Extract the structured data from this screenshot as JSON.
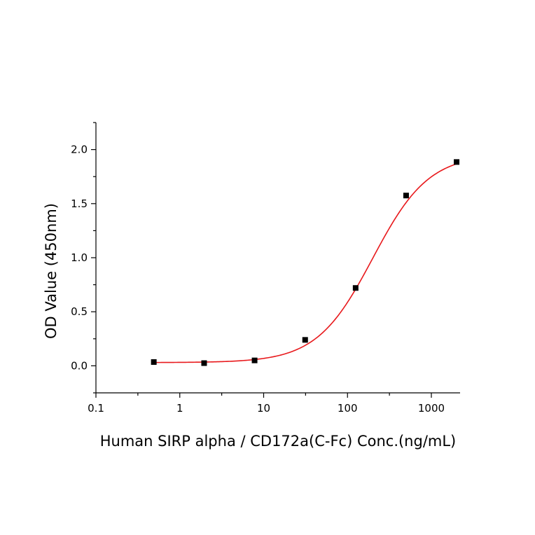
{
  "chart_data": {
    "type": "scatter",
    "xscale": "log",
    "xlim": [
      0.1,
      2200
    ],
    "ylim": [
      -0.25,
      2.25
    ],
    "xlabel": "Human SIRP alpha / CD172a(C-Fc) Conc.(ng/mL)",
    "ylabel": "OD Value (450nm)",
    "x_ticks": [
      0.1,
      1,
      10,
      100,
      1000
    ],
    "x_tick_labels": [
      "0.1",
      "1",
      "10",
      "100",
      "1000"
    ],
    "y_ticks": [
      0.0,
      0.5,
      1.0,
      1.5,
      2.0
    ],
    "y_tick_labels": [
      "0.0",
      "0.5",
      "1.0",
      "1.5",
      "2.0"
    ],
    "grid": false,
    "series": [
      {
        "marker": "square",
        "color": "#000000",
        "x": [
          0.49,
          1.95,
          7.8,
          31.25,
          125,
          500,
          2000
        ],
        "y": [
          0.035,
          0.025,
          0.05,
          0.24,
          0.72,
          1.575,
          1.885
        ]
      }
    ],
    "fit": {
      "type": "4PL",
      "color": "#e8191c",
      "bottom": 0.03,
      "top": 1.96,
      "ec50": 200,
      "hill": 1.3
    }
  }
}
